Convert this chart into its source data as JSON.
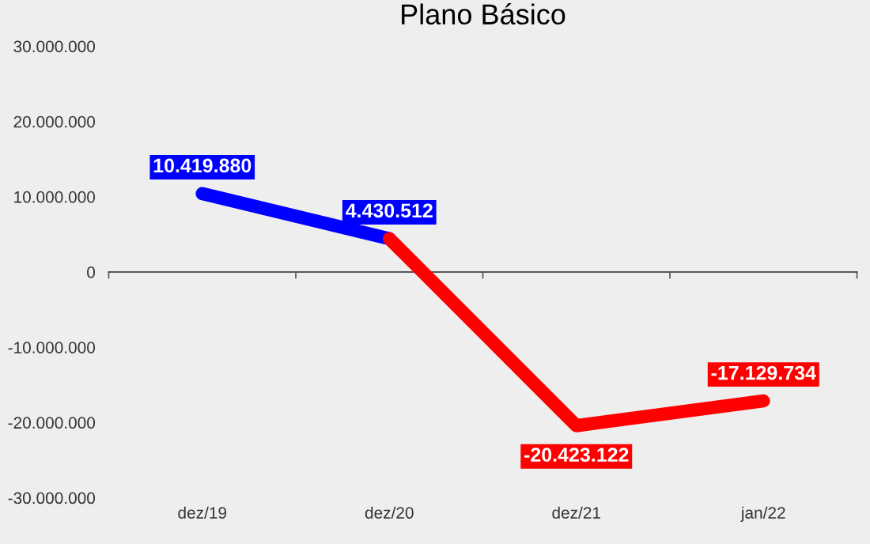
{
  "chart_data": {
    "type": "line",
    "title": "Plano Básico",
    "categories": [
      "dez/19",
      "dez/20",
      "dez/21",
      "jan/22"
    ],
    "series": [
      {
        "color": "#0000ff",
        "values": [
          10419880,
          4430512,
          null,
          null
        ],
        "value_labels": [
          "10.419.880",
          "4.430.512",
          null,
          null
        ]
      },
      {
        "color": "#ff0000",
        "values": [
          null,
          4430512,
          -20423122,
          -17129734
        ],
        "value_labels": [
          null,
          null,
          "-20.423.122",
          "-17.129.734"
        ]
      }
    ],
    "ylim": [
      -30000000,
      30000000
    ],
    "yticks": [
      {
        "value": 30000000,
        "label": "30.000.000"
      },
      {
        "value": 20000000,
        "label": "20.000.000"
      },
      {
        "value": 10000000,
        "label": "10.000.000"
      },
      {
        "value": 0,
        "label": "0"
      },
      {
        "value": -10000000,
        "label": "-10.000.000"
      },
      {
        "value": -20000000,
        "label": "-20.000.000"
      },
      {
        "value": -30000000,
        "label": "-30.000.000"
      }
    ],
    "marker": "none",
    "line_style": "solid"
  }
}
